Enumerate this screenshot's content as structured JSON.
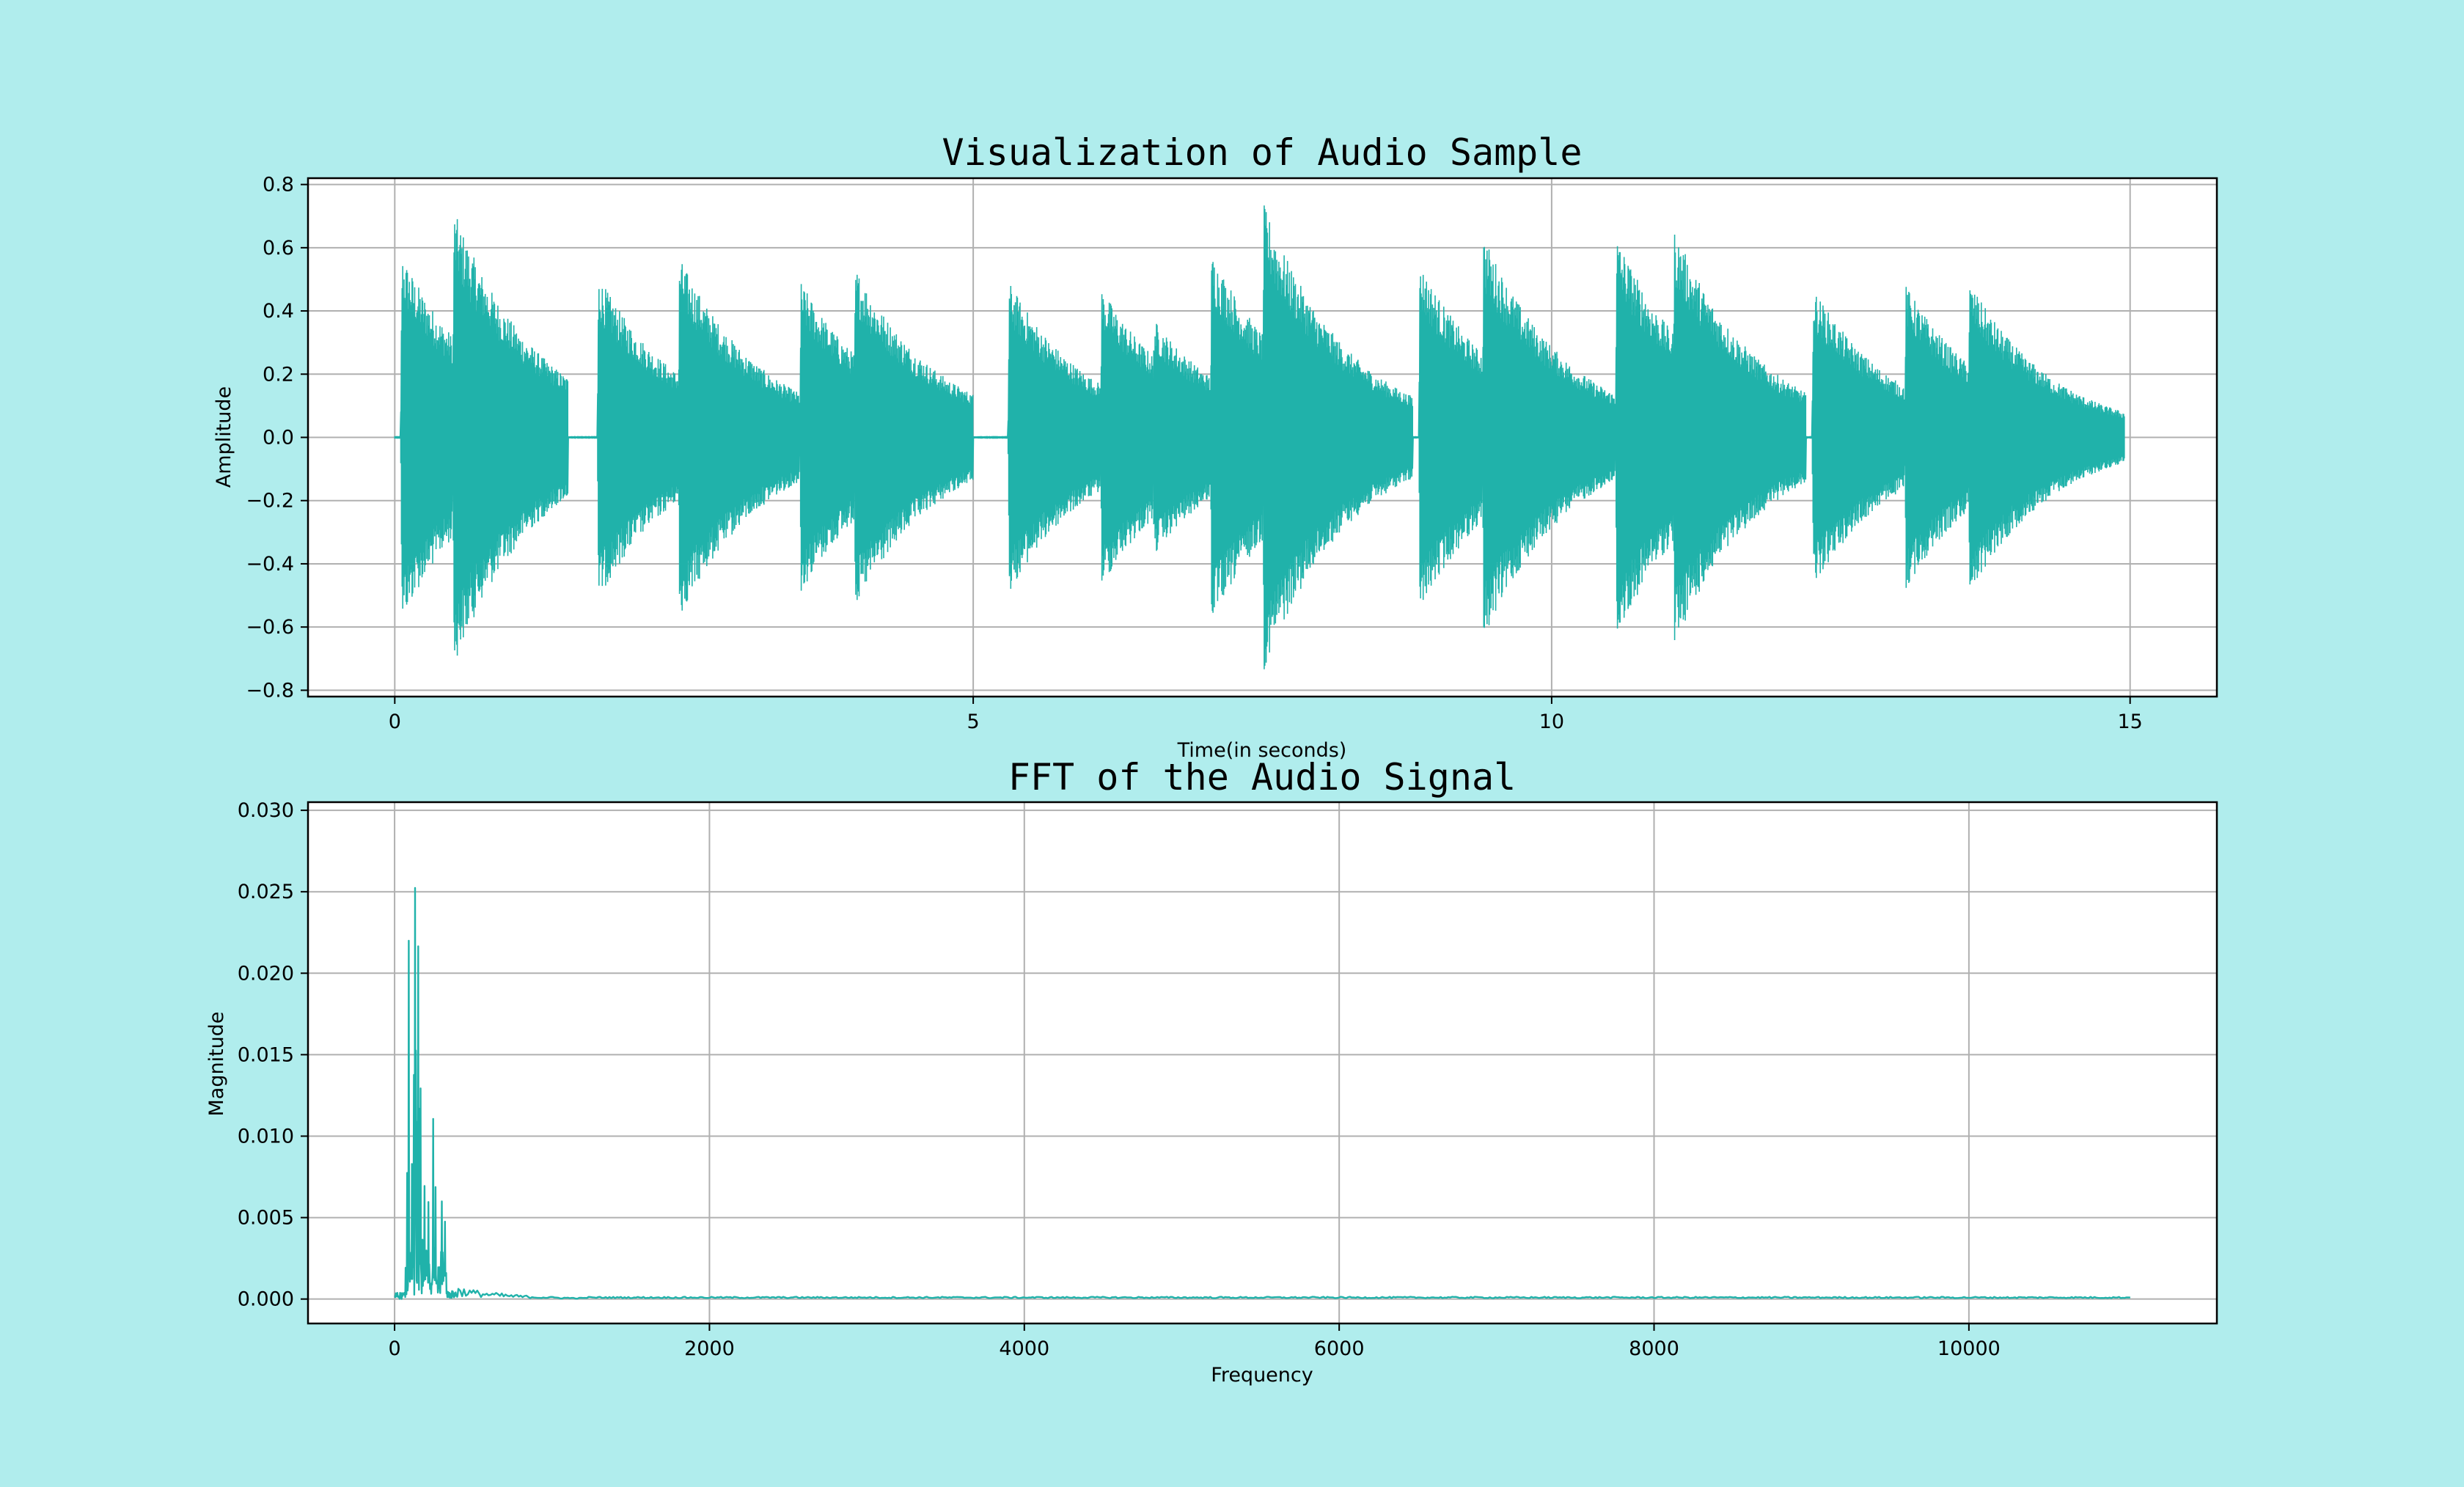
{
  "chart_data": [
    {
      "type": "line",
      "title": "Visualization of Audio Sample",
      "xlabel": "Time(in seconds)",
      "ylabel": "Amplitude",
      "xlim": [
        -0.75,
        15.75
      ],
      "ylim": [
        -0.82,
        0.82
      ],
      "xticks": [
        0,
        5,
        10,
        15
      ],
      "xtick_labels": [
        "0",
        "5",
        "10",
        "15"
      ],
      "yticks": [
        -0.8,
        -0.6,
        -0.4,
        -0.2,
        0.0,
        0.2,
        0.4,
        0.6,
        0.8
      ],
      "ytick_labels": [
        "−0.8",
        "−0.6",
        "−0.4",
        "−0.2",
        "0.0",
        "0.2",
        "0.4",
        "0.6",
        "0.8"
      ],
      "grid": true,
      "color": "#20b2aa",
      "duration_seconds": 14.95,
      "onsets": [
        {
          "t": 0.05,
          "peak": 0.59,
          "end": 0.5
        },
        {
          "t": 0.5,
          "peak": 0.73,
          "end": 1.5
        },
        {
          "t": 1.75,
          "peak": 0.52,
          "end": 2.45
        },
        {
          "t": 2.45,
          "peak": 0.58,
          "end": 3.5
        },
        {
          "t": 3.5,
          "peak": 0.5,
          "end": 3.97
        },
        {
          "t": 3.97,
          "peak": 0.55,
          "end": 5.0
        },
        {
          "t": 5.3,
          "peak": 0.5,
          "end": 6.1
        },
        {
          "t": 6.1,
          "peak": 0.48,
          "end": 6.55
        },
        {
          "t": 6.55,
          "peak": 0.38,
          "end": 7.05
        },
        {
          "t": 7.05,
          "peak": 0.6,
          "end": 7.5
        },
        {
          "t": 7.5,
          "peak": 0.75,
          "end": 8.8
        },
        {
          "t": 8.85,
          "peak": 0.56,
          "end": 9.4
        },
        {
          "t": 9.4,
          "peak": 0.65,
          "end": 10.55
        },
        {
          "t": 10.55,
          "peak": 0.65,
          "end": 11.05
        },
        {
          "t": 11.05,
          "peak": 0.67,
          "end": 12.2
        },
        {
          "t": 12.25,
          "peak": 0.48,
          "end": 13.05
        },
        {
          "t": 13.05,
          "peak": 0.49,
          "end": 13.6
        },
        {
          "t": 13.6,
          "peak": 0.5,
          "end": 14.95
        }
      ]
    },
    {
      "type": "line",
      "title": "FFT of the Audio Signal",
      "xlabel": "Frequency",
      "ylabel": "Magnitude",
      "xlim": [
        -550,
        11575
      ],
      "ylim": [
        -0.0015,
        0.0305
      ],
      "xticks": [
        0,
        2000,
        4000,
        6000,
        8000,
        10000
      ],
      "xtick_labels": [
        "0",
        "2000",
        "4000",
        "6000",
        "8000",
        "10000"
      ],
      "yticks": [
        0.0,
        0.005,
        0.01,
        0.015,
        0.02,
        0.025,
        0.03
      ],
      "ytick_labels": [
        "0.000",
        "0.005",
        "0.010",
        "0.015",
        "0.020",
        "0.025",
        "0.030"
      ],
      "grid": true,
      "color": "#20b2aa",
      "max_frequency": 11025,
      "peaks": [
        {
          "x": 90,
          "y": 0.0245
        },
        {
          "x": 110,
          "y": 0.0085
        },
        {
          "x": 130,
          "y": 0.029
        },
        {
          "x": 150,
          "y": 0.025
        },
        {
          "x": 165,
          "y": 0.013
        },
        {
          "x": 190,
          "y": 0.008
        },
        {
          "x": 215,
          "y": 0.0065
        },
        {
          "x": 245,
          "y": 0.013
        },
        {
          "x": 260,
          "y": 0.008
        },
        {
          "x": 300,
          "y": 0.006
        },
        {
          "x": 320,
          "y": 0.0055
        }
      ]
    }
  ]
}
